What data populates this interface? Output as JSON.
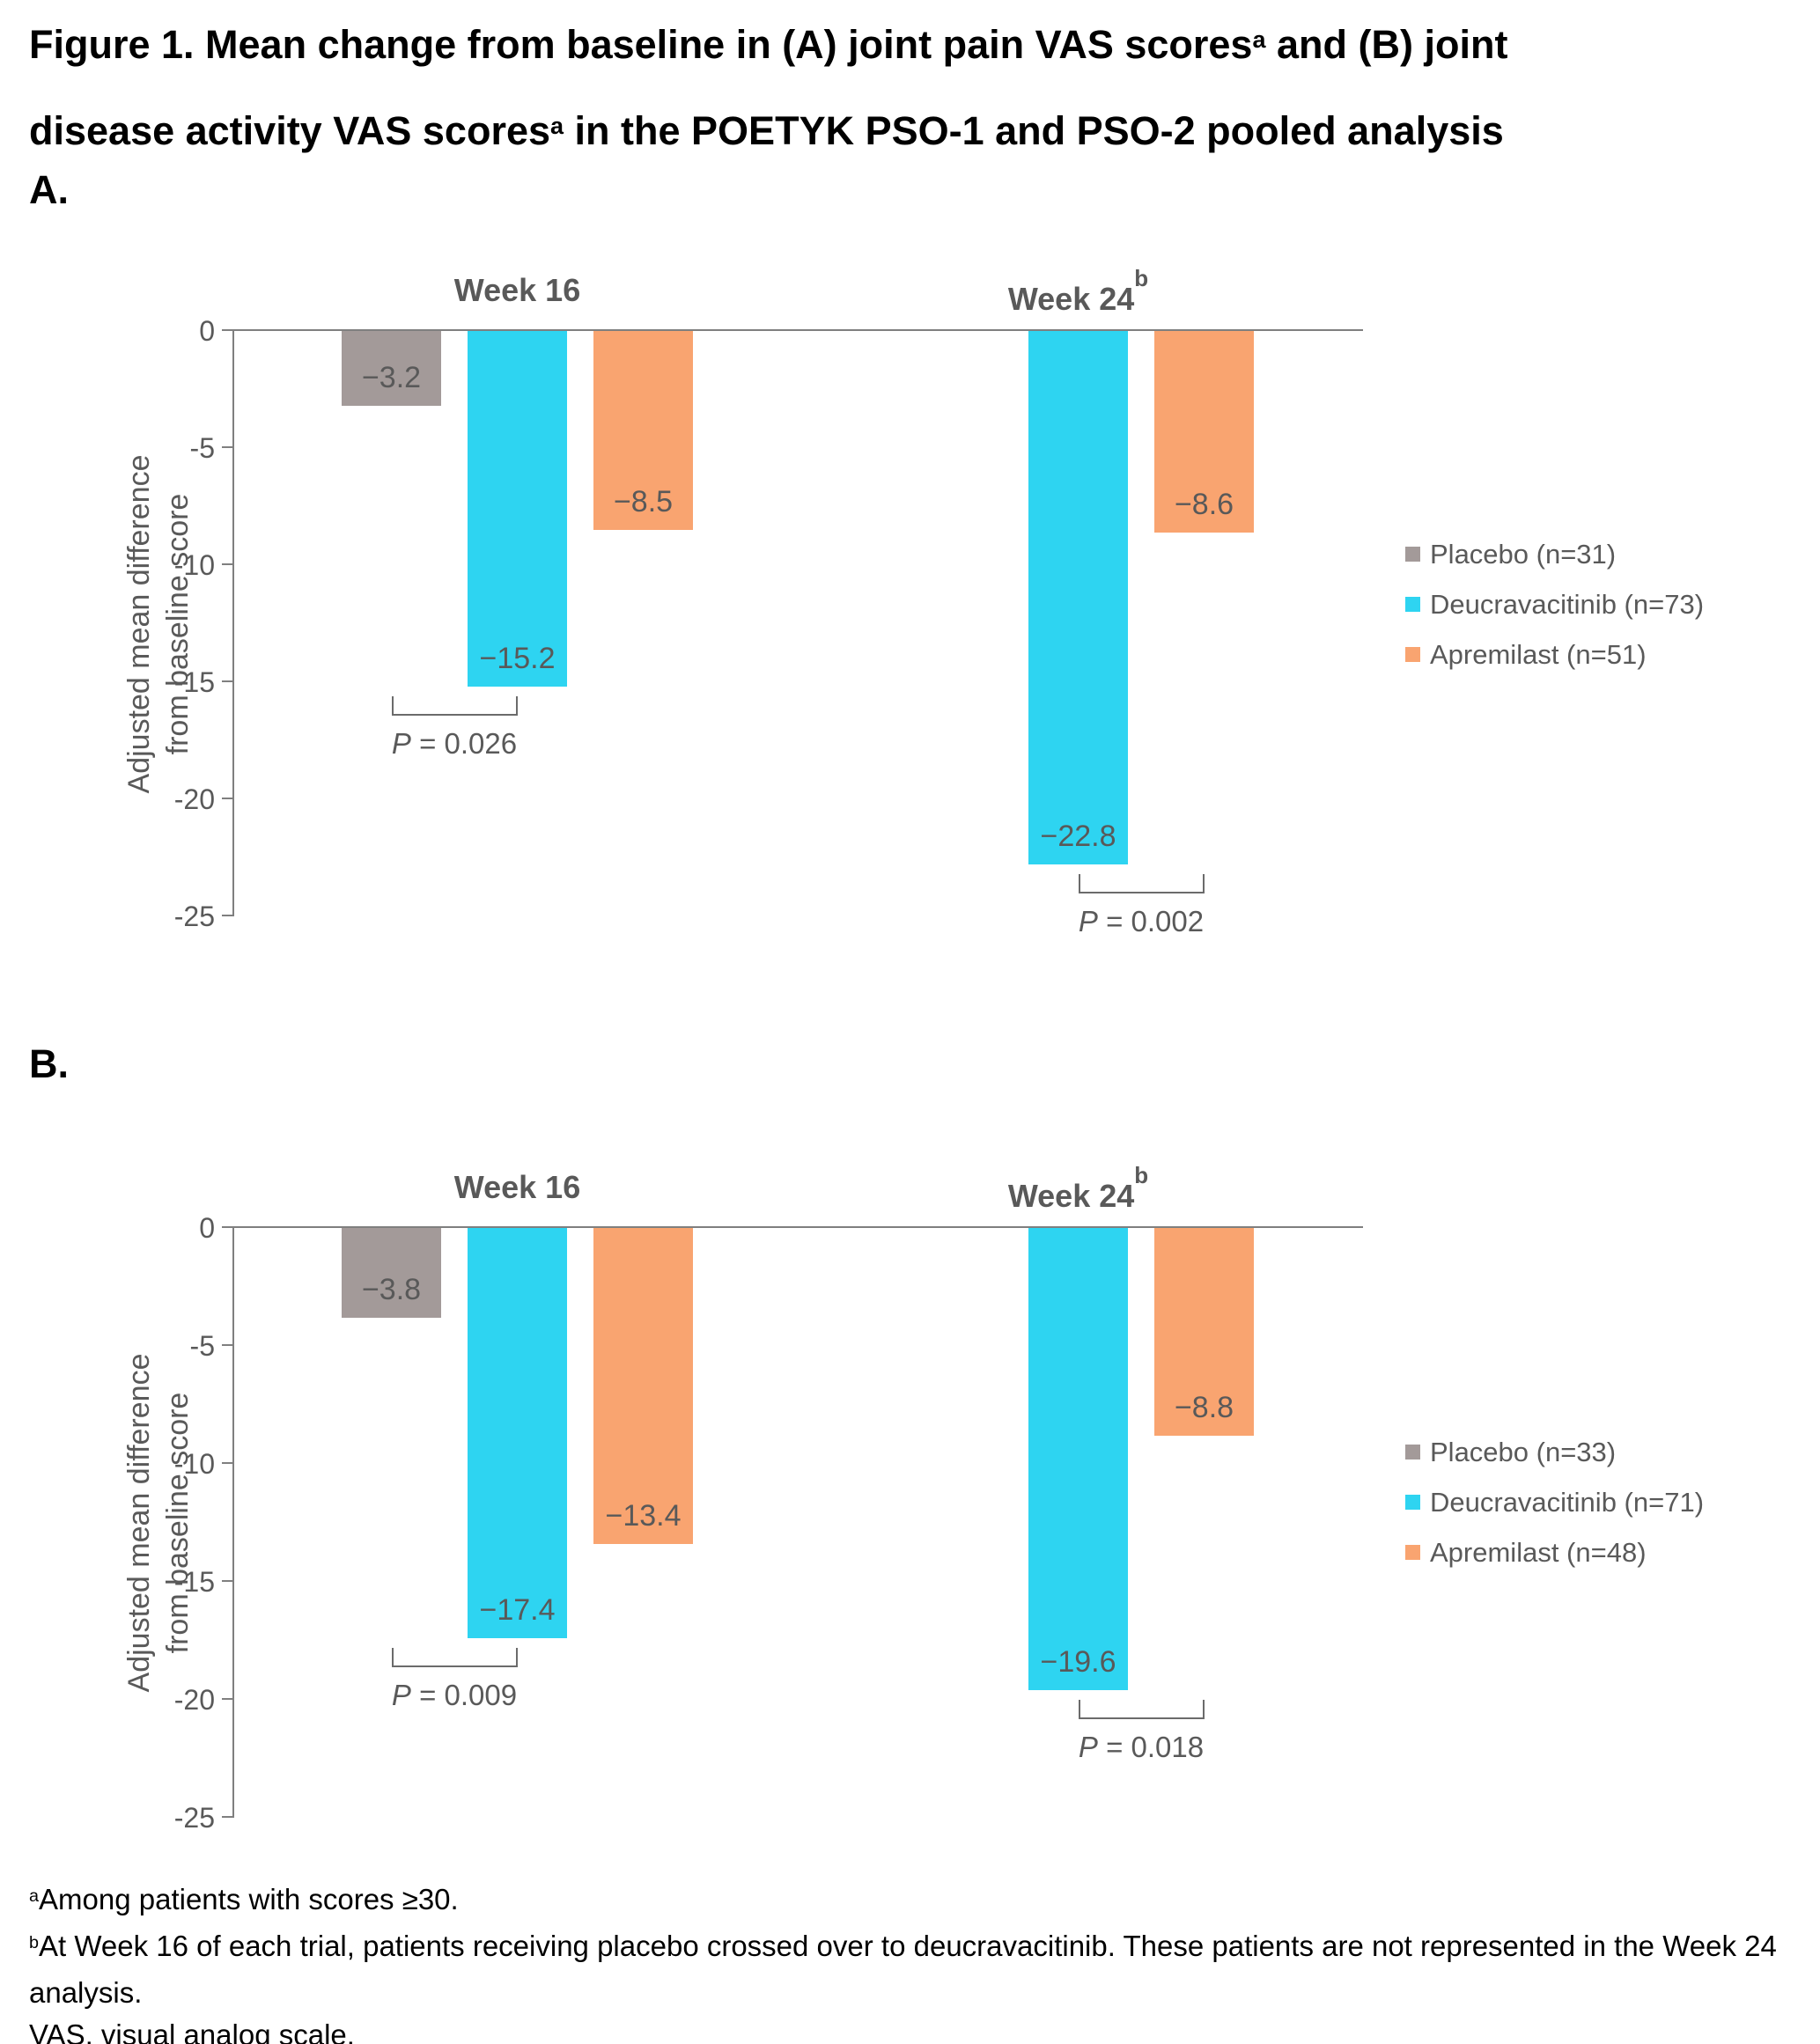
{
  "title_segments": [
    {
      "text": "Figure 1. Mean change from baseline in (A) joint pain VAS scores",
      "sup": false
    },
    {
      "text": "a",
      "sup": true
    },
    {
      "text": " and (B) joint disease activity VAS scores",
      "sup": false
    },
    {
      "text": "a",
      "sup": true
    },
    {
      "text": " in the POETYK PSO-1 and PSO-2 pooled analysis",
      "sup": false
    }
  ],
  "colors": {
    "placebo": "#a39a99",
    "deucravacitinib": "#2ed4f1",
    "apremilast": "#f9a470",
    "axis": "#7f7f7f",
    "chart_text": "#595959",
    "bracket": "#6b6b6b",
    "title_text": "#000000"
  },
  "chart_data": [
    {
      "type": "bar",
      "panel_label": "A.",
      "ylabel_lines": [
        "Adjusted mean difference",
        "from baseline score"
      ],
      "ylim": [
        -25,
        0
      ],
      "yticks": [
        {
          "value": 0,
          "label": "0"
        },
        {
          "value": -5,
          "label": "-5"
        },
        {
          "value": -10,
          "label": "-10"
        },
        {
          "value": -15,
          "label": "-15"
        },
        {
          "value": -20,
          "label": "-20"
        },
        {
          "value": -25,
          "label": "-25"
        }
      ],
      "groups": [
        {
          "label": "Week 16",
          "sup": "",
          "bars": [
            {
              "series": "placebo",
              "value": -3.2,
              "display": "−3.2"
            },
            {
              "series": "deucravacitinib",
              "value": -15.2,
              "display": "−15.2"
            },
            {
              "series": "apremilast",
              "value": -8.5,
              "display": "−8.5"
            }
          ]
        },
        {
          "label": "Week 24",
          "sup": "b",
          "bars": [
            {
              "series": "placebo",
              "value": null,
              "display": ""
            },
            {
              "series": "deucravacitinib",
              "value": -22.8,
              "display": "−22.8"
            },
            {
              "series": "apremilast",
              "value": -8.6,
              "display": "−8.6"
            }
          ]
        }
      ],
      "p_values": [
        {
          "group": 0,
          "from_slot": 0,
          "to_slot": 1,
          "label": "P = 0.026"
        },
        {
          "group": 1,
          "from_slot": 1,
          "to_slot": 2,
          "label": "P = 0.002"
        }
      ],
      "legend": [
        {
          "series": "placebo",
          "label": "Placebo (n=31)"
        },
        {
          "series": "deucravacitinib",
          "label": "Deucravacitinib (n=73)"
        },
        {
          "series": "apremilast",
          "label": "Apremilast (n=51)"
        }
      ]
    },
    {
      "type": "bar",
      "panel_label": "B.",
      "ylabel_lines": [
        "Adjusted mean difference",
        "from baseline score"
      ],
      "ylim": [
        -25,
        0
      ],
      "yticks": [
        {
          "value": 0,
          "label": "0"
        },
        {
          "value": -5,
          "label": "-5"
        },
        {
          "value": -10,
          "label": "-10"
        },
        {
          "value": -15,
          "label": "-15"
        },
        {
          "value": -20,
          "label": "-20"
        },
        {
          "value": -25,
          "label": "-25"
        }
      ],
      "groups": [
        {
          "label": "Week 16",
          "sup": "",
          "bars": [
            {
              "series": "placebo",
              "value": -3.8,
              "display": "−3.8"
            },
            {
              "series": "deucravacitinib",
              "value": -17.4,
              "display": "−17.4"
            },
            {
              "series": "apremilast",
              "value": -13.4,
              "display": "−13.4"
            }
          ]
        },
        {
          "label": "Week 24",
          "sup": "b",
          "bars": [
            {
              "series": "placebo",
              "value": null,
              "display": ""
            },
            {
              "series": "deucravacitinib",
              "value": -19.6,
              "display": "−19.6"
            },
            {
              "series": "apremilast",
              "value": -8.8,
              "display": "−8.8"
            }
          ]
        }
      ],
      "p_values": [
        {
          "group": 0,
          "from_slot": 0,
          "to_slot": 1,
          "label": "P = 0.009"
        },
        {
          "group": 1,
          "from_slot": 1,
          "to_slot": 2,
          "label": "P = 0.018"
        }
      ],
      "legend": [
        {
          "series": "placebo",
          "label": "Placebo (n=33)"
        },
        {
          "series": "deucravacitinib",
          "label": "Deucravacitinib (n=71)"
        },
        {
          "series": "apremilast",
          "label": "Apremilast (n=48)"
        }
      ]
    }
  ],
  "footnotes": [
    {
      "sup": "a",
      "text": "Among patients with scores ≥30."
    },
    {
      "sup": "b",
      "text": "At Week 16 of each trial, patients receiving placebo crossed over to deucravacitinib. These patients are not represented in the Week 24 analysis."
    },
    {
      "sup": "",
      "text": "VAS, visual analog scale."
    }
  ]
}
